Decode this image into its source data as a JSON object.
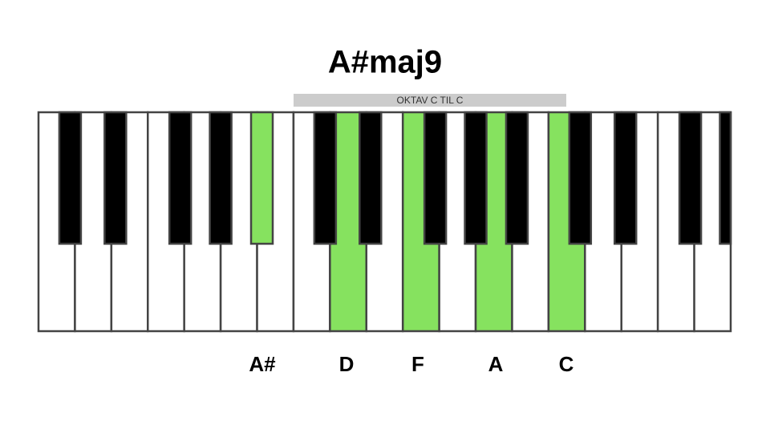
{
  "title": "A#maj9",
  "octave_label": "OKTAV C TIL C",
  "notes": [
    "A#",
    "D",
    "F",
    "A",
    "C"
  ]
}
